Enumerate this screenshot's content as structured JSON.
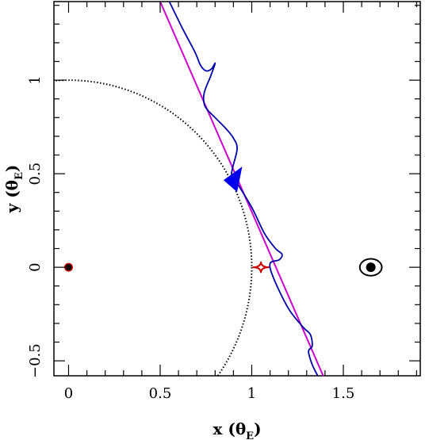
{
  "chart_data": {
    "type": "line",
    "xlabel": {
      "prefix": "x (",
      "symbol": "θ",
      "sub": "E",
      "suffix": ")"
    },
    "ylabel": {
      "prefix": "y (",
      "symbol": "θ",
      "sub": "E",
      "suffix": ")"
    },
    "xlim": [
      -0.08,
      1.92
    ],
    "ylim": [
      -0.58,
      1.42
    ],
    "x_ticks_major": [
      0,
      0.5,
      1,
      1.5
    ],
    "x_tick_labels": [
      "0",
      "0.5",
      "1",
      "1.5"
    ],
    "x_ticks_minor_step": 0.1,
    "y_ticks_major": [
      -0.5,
      0,
      0.5,
      1
    ],
    "y_tick_labels": [
      "−0.5",
      "0",
      "0.5",
      "1"
    ],
    "y_ticks_minor_step": 0.1,
    "grid": false,
    "legend": false,
    "series": [
      {
        "style": "straight-line",
        "color": "#cc00cc",
        "x": [
          0.5,
          1.39
        ],
        "y": [
          1.42,
          -0.58
        ]
      },
      {
        "style": "wiggly-curve",
        "color": "#0000aa",
        "x": [
          0.55,
          0.62,
          0.69,
          0.72,
          0.75,
          0.78,
          0.8,
          0.775,
          0.74,
          0.745,
          0.8,
          0.86,
          0.9,
          0.92,
          0.89,
          0.92,
          1.0,
          1.07,
          1.13,
          1.165,
          1.15,
          1.1,
          1.12,
          1.2,
          1.28,
          1.32,
          1.33,
          1.31,
          1.33,
          1.36
        ],
        "y": [
          1.42,
          1.28,
          1.15,
          1.08,
          1.05,
          1.06,
          1.09,
          1.02,
          0.93,
          0.86,
          0.8,
          0.74,
          0.69,
          0.63,
          0.5,
          0.45,
          0.32,
          0.18,
          0.1,
          0.07,
          0.04,
          0.02,
          -0.06,
          -0.22,
          -0.32,
          -0.36,
          -0.42,
          -0.45,
          -0.52,
          -0.58
        ]
      },
      {
        "style": "einstein-ring",
        "color": "#000000",
        "center": [
          0,
          0
        ],
        "radius": 1
      }
    ],
    "markers": {
      "blue_arrowhead": {
        "x": 0.91,
        "y": 0.44,
        "color": "#0000ee"
      },
      "caustic": {
        "x": 1.05,
        "y": 0.0,
        "half_width": 0.045,
        "half_height": 0.03,
        "color": "#cc0000"
      },
      "primary_lens": {
        "x": 0,
        "y": 0,
        "color": "#000000",
        "ring_color": "#cc0000"
      },
      "companion_lens": {
        "x": 1.65,
        "y": 0,
        "color": "#000000",
        "critical_curve": {
          "rx": 0.06,
          "ry": 0.045
        }
      }
    }
  }
}
